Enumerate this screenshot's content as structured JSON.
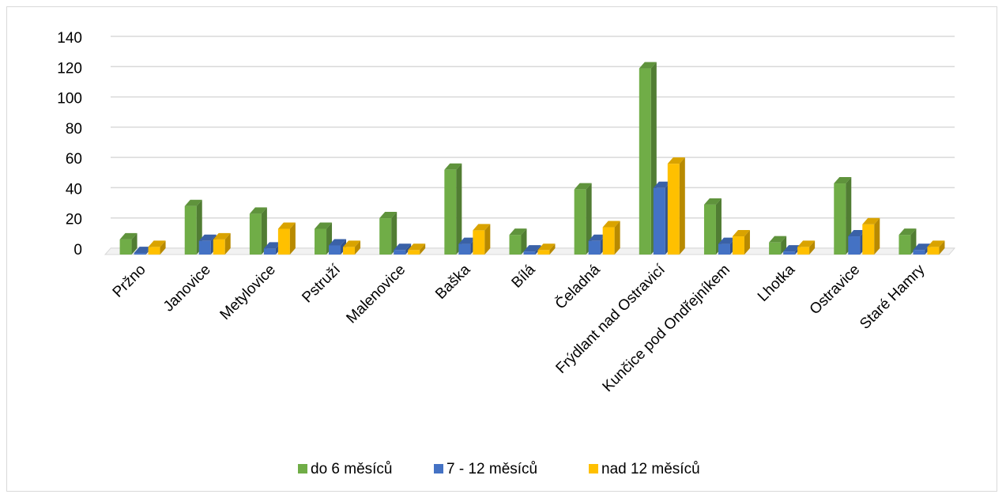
{
  "chart_data": {
    "type": "bar",
    "three_d": true,
    "categories": [
      "Pržno",
      "Janovice",
      "Metylovice",
      "Pstruží",
      "Malenovice",
      "Baška",
      "Bílá",
      "Čeladná",
      "Frýdlant nad Ostravicí",
      "Kunčice pod Ondřejníkem",
      "Lhotka",
      "Ostravice",
      "Staré Hamry"
    ],
    "series": [
      {
        "name": "do 6 měsíců",
        "color": "#70ad47",
        "values": [
          10,
          32,
          27,
          17,
          24,
          56,
          13,
          43,
          123,
          33,
          8,
          47,
          13
        ]
      },
      {
        "name": "7 - 12 měsíců",
        "color": "#4472c4",
        "values": [
          1,
          9,
          4,
          6,
          3,
          7,
          2,
          9,
          44,
          7,
          2,
          12,
          3
        ]
      },
      {
        "name": "nad 12 měsíců",
        "color": "#ffc000",
        "values": [
          5,
          10,
          17,
          5,
          3,
          16,
          3,
          18,
          60,
          12,
          5,
          20,
          5
        ]
      }
    ],
    "y_ticks": [
      "0",
      "20",
      "40",
      "60",
      "80",
      "100",
      "120",
      "140"
    ],
    "ylim": [
      0,
      140
    ],
    "grid": true,
    "legend_position": "bottom"
  }
}
